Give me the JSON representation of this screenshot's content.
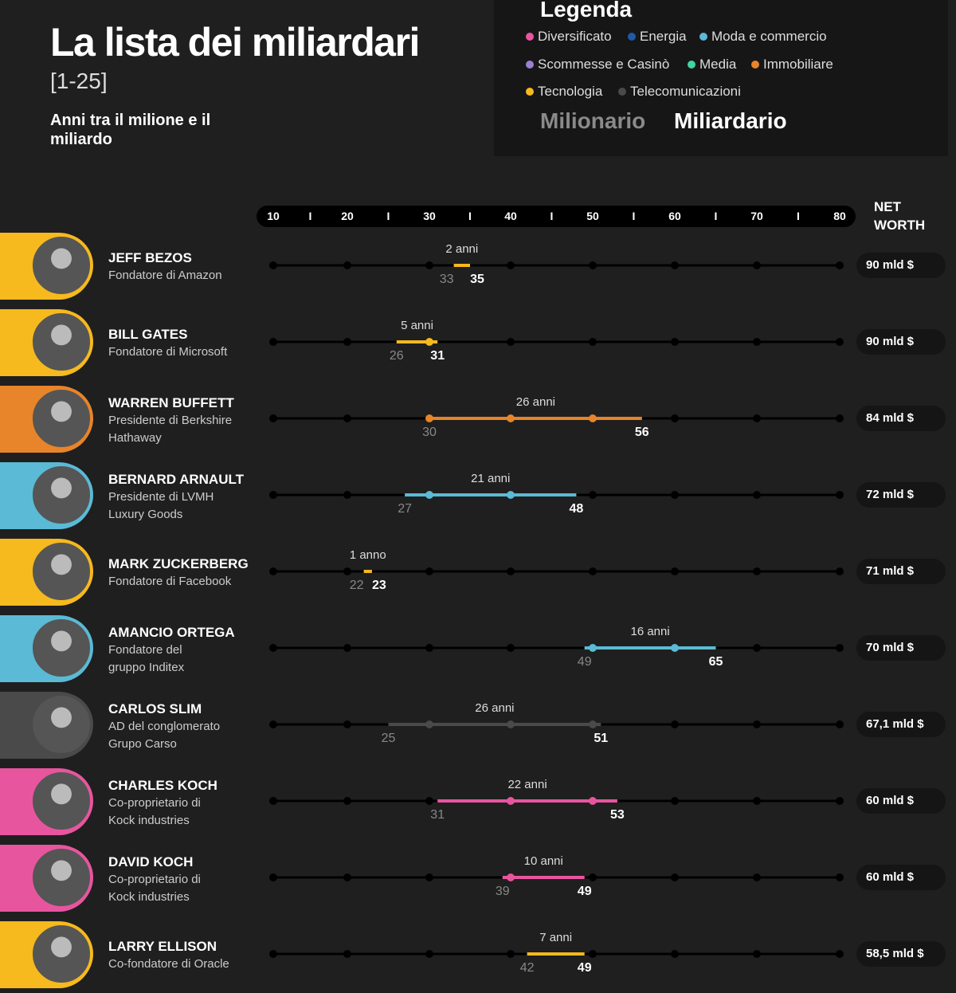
{
  "header": {
    "title": "La lista dei miliardari",
    "subtitle": "[1-25]",
    "description": "Anni tra il milione e il miliardo"
  },
  "legend": {
    "title": "Legenda",
    "categories": [
      {
        "label": "Diversificato",
        "color": "#e8559f"
      },
      {
        "label": "Energia",
        "color": "#1d5aa8"
      },
      {
        "label": "Moda e commercio",
        "color": "#5bbad5"
      },
      {
        "label": "Scommesse e Casinò",
        "color": "#9b7fd1"
      },
      {
        "label": "Media",
        "color": "#3fd6a0"
      },
      {
        "label": "Immobiliare",
        "color": "#e8842a"
      },
      {
        "label": "Tecnologia",
        "color": "#f6b91e"
      },
      {
        "label": "Telecomunicazioni",
        "color": "#4a4a4a"
      }
    ],
    "milionario": "Milionario",
    "miliardario": "Miliardario"
  },
  "net_worth_header": "NET WORTH",
  "chart_data": {
    "type": "range-timeline",
    "axis_ticks": [
      10,
      20,
      30,
      40,
      50,
      60,
      70,
      80
    ],
    "xlim": [
      10,
      80
    ],
    "rows": [
      {
        "name": "JEFF BEZOS",
        "role": [
          "Fondatore di Amazon"
        ],
        "category": "Tecnologia",
        "start": 33,
        "end": 35,
        "duration": "2 anni",
        "net_worth": "90 mld $"
      },
      {
        "name": "BILL GATES",
        "role": [
          "Fondatore di Microsoft"
        ],
        "category": "Tecnologia",
        "start": 26,
        "end": 31,
        "duration": "5 anni",
        "net_worth": "90 mld $"
      },
      {
        "name": "WARREN BUFFETT",
        "role": [
          "Presidente di Berkshire",
          "Hathaway"
        ],
        "category": "Immobiliare",
        "start": 30,
        "end": 56,
        "duration": "26 anni",
        "net_worth": "84 mld $"
      },
      {
        "name": "BERNARD ARNAULT",
        "role": [
          "Presidente di LVMH",
          "Luxury Goods"
        ],
        "category": "Moda e commercio",
        "start": 27,
        "end": 48,
        "duration": "21 anni",
        "net_worth": "72 mld $"
      },
      {
        "name": "MARK ZUCKERBERG",
        "role": [
          "Fondatore di Facebook"
        ],
        "category": "Tecnologia",
        "start": 22,
        "end": 23,
        "duration": "1 anno",
        "net_worth": "71 mld $"
      },
      {
        "name": "AMANCIO ORTEGA",
        "role": [
          "Fondatore del",
          "gruppo Inditex"
        ],
        "category": "Moda e commercio",
        "start": 49,
        "end": 65,
        "duration": "16 anni",
        "net_worth": "70 mld $"
      },
      {
        "name": "CARLOS SLIM",
        "role": [
          "AD del conglomerato",
          "Grupo Carso"
        ],
        "category": "Telecomunicazioni",
        "start": 25,
        "end": 51,
        "duration": "26 anni",
        "net_worth": "67,1 mld $"
      },
      {
        "name": "CHARLES KOCH",
        "role": [
          "Co-proprietario di",
          "Kock industries"
        ],
        "category": "Diversificato",
        "start": 31,
        "end": 53,
        "duration": "22 anni",
        "net_worth": "60 mld $"
      },
      {
        "name": "DAVID KOCH",
        "role": [
          "Co-proprietario di",
          "Kock industries"
        ],
        "category": "Diversificato",
        "start": 39,
        "end": 49,
        "duration": "10 anni",
        "net_worth": "60 mld $"
      },
      {
        "name": "LARRY ELLISON",
        "role": [
          "Co-fondatore di Oracle"
        ],
        "category": "Tecnologia",
        "start": 42,
        "end": 49,
        "duration": "7 anni",
        "net_worth": "58,5 mld $"
      }
    ]
  }
}
